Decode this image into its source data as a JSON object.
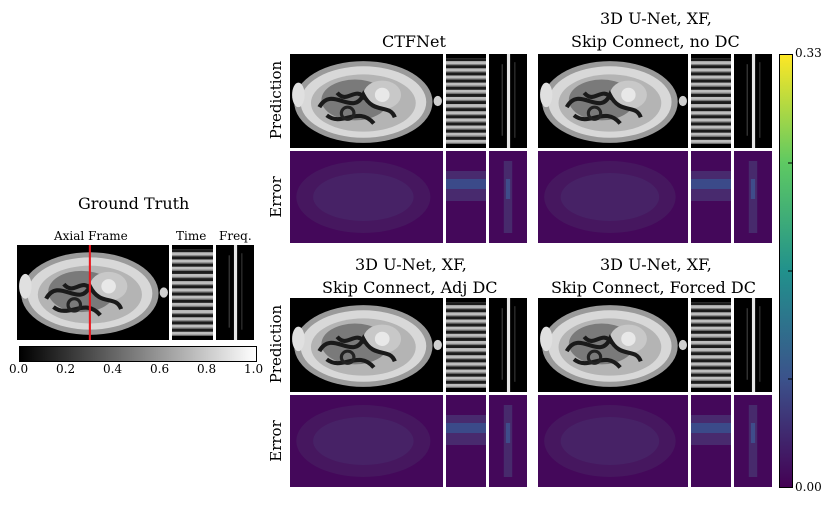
{
  "ground_truth": {
    "title": "Ground Truth",
    "labels": {
      "axial": "Axial Frame",
      "time": "Time",
      "freq": "Freq."
    },
    "colorbar_ticks": [
      "0.0",
      "0.2",
      "0.4",
      "0.6",
      "0.8",
      "1.0"
    ]
  },
  "methods": [
    {
      "title_line1": "",
      "title_line2": "CTFNet"
    },
    {
      "title_line1": "3D U-Net, XF,",
      "title_line2": "Skip Connect, no DC"
    },
    {
      "title_line1": "3D U-Net, XF,",
      "title_line2": "Skip Connect, Adj DC"
    },
    {
      "title_line1": "3D U-Net, XF,",
      "title_line2": "Skip Connect, Forced DC"
    }
  ],
  "row_labels": {
    "prediction": "Prediction",
    "error": "Error"
  },
  "error_colorbar": {
    "max": "0.33",
    "min": "0.00",
    "colormap": "viridis"
  },
  "colors": {
    "marker_line": "#e8181f",
    "error_background": "#44085a"
  }
}
